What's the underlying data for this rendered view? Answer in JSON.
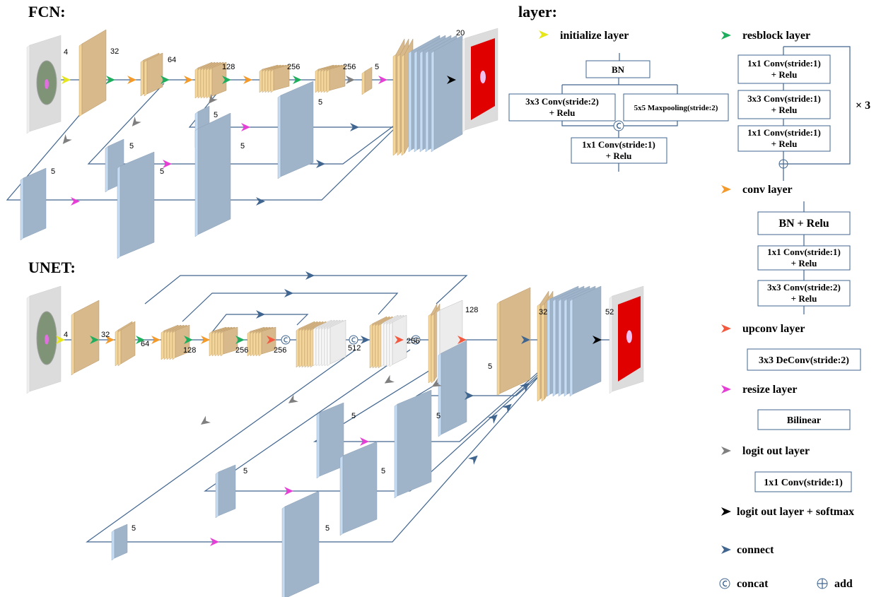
{
  "fcn": {
    "title": "FCN:",
    "labels": [
      4,
      32,
      64,
      128,
      256,
      256,
      5,
      20,
      5,
      5,
      5,
      5,
      5,
      5
    ]
  },
  "unet": {
    "title": "UNET:",
    "labels": [
      4,
      32,
      64,
      128,
      256,
      256,
      512,
      256,
      128,
      32,
      52,
      5,
      5,
      5,
      5,
      5,
      5,
      5
    ]
  },
  "legend": {
    "title": "layer:",
    "initialize": {
      "label": "initialize layer",
      "bn": "BN",
      "conv": [
        "3x3 Conv(stride:2)",
        "+ Relu"
      ],
      "pool": "5x5 Maxpooling(stride:2)",
      "out": [
        "1x1 Conv(stride:1)",
        "+ Relu"
      ]
    },
    "resblock": {
      "label": "resblock layer",
      "boxes": [
        [
          "1x1 Conv(stride:1)",
          "+ Relu"
        ],
        [
          "3x3 Conv(stride:1)",
          "+ Relu"
        ],
        [
          "1x1 Conv(stride:1)",
          "+ Relu"
        ]
      ],
      "repeat": "× 3"
    },
    "conv": {
      "label": "conv layer",
      "boxes": [
        [
          "BN + Relu"
        ],
        [
          "1x1 Conv(stride:1)",
          "+ Relu"
        ],
        [
          "3x3 Conv(stride:2)",
          "+ Relu"
        ]
      ]
    },
    "upconv": {
      "label": "upconv layer",
      "box": "3x3 DeConv(stride:2)"
    },
    "resize": {
      "label": "resize layer",
      "box": "Bilinear"
    },
    "logit": {
      "label": "logit out layer",
      "box": "1x1 Conv(stride:1)"
    },
    "softmax": {
      "label": "logit out layer + softmax"
    },
    "connect": {
      "label": "connect"
    },
    "concat": {
      "label": "concat"
    },
    "add": {
      "label": "add"
    }
  }
}
